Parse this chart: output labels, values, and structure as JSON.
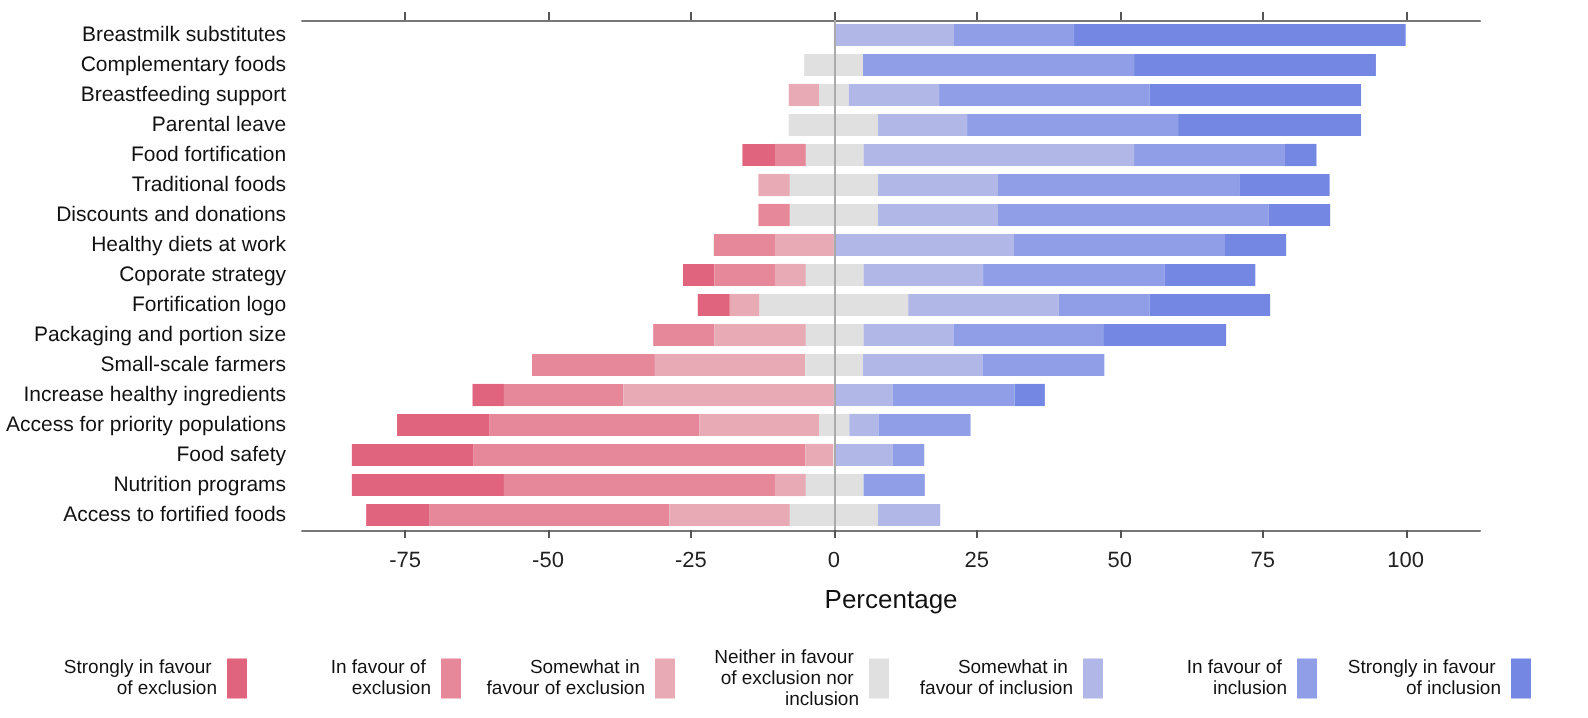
{
  "chart_data": {
    "type": "bar",
    "orientation": "horizontal",
    "xlabel": "Percentage",
    "categories": [
      "Breastmilk substitutes",
      "Complementary foods",
      "Breastfeeding support",
      "Parental leave",
      "Food fortification",
      "Traditional foods",
      "Discounts and donations",
      "Healthy diets at work",
      "Coporate strategy",
      "Fortification logo",
      "Packaging and portion size",
      "Small-scale farmers",
      "Increase healthy ingredients",
      "Access for priority populations",
      "Food safety",
      "Nutrition programs",
      "Access to fortified foods"
    ],
    "series": [
      {
        "name": "Strongly in favour of exclusion",
        "color": "#e0647e",
        "base": [
          null,
          null,
          null,
          null,
          -16,
          null,
          null,
          null,
          -26.4,
          -23.8,
          null,
          null,
          -63.2,
          -76.4,
          -84.3,
          -84.3,
          -81.8
        ],
        "values": [
          null,
          null,
          null,
          null,
          5.7,
          null,
          null,
          null,
          5.5,
          5.6,
          null,
          null,
          5.5,
          16.2,
          21.3,
          26.6,
          11
        ]
      },
      {
        "name": "In favour of exclusion",
        "color": "#e6889a",
        "base": [
          null,
          null,
          null,
          null,
          -10.3,
          null,
          -13.2,
          -21,
          -20.9,
          null,
          -31.6,
          -52.8,
          -57.7,
          -60.2,
          -63,
          -57.7,
          -70.8
        ],
        "values": [
          null,
          null,
          null,
          null,
          5.4,
          null,
          5.5,
          10.7,
          10.6,
          null,
          10.7,
          21.5,
          20.9,
          36.7,
          58,
          47.4,
          42
        ]
      },
      {
        "name": "Somewhat in favour of exclusion",
        "color": "#e8aab4",
        "base": [
          null,
          null,
          -7.9,
          null,
          null,
          -13.2,
          null,
          -10.3,
          -10.3,
          -18.2,
          -20.9,
          -31.3,
          -36.8,
          -23.5,
          -5,
          -10.3,
          -28.8
        ],
        "values": [
          null,
          null,
          5.3,
          null,
          null,
          5.5,
          null,
          10.3,
          5.4,
          5.2,
          16,
          26.3,
          36.8,
          20.9,
          4.9,
          5.4,
          21.1
        ]
      },
      {
        "name": "Neither in favour of exclusion nor inclusion",
        "color": "#e0e0e0",
        "base": [
          null,
          -5.2,
          -2.6,
          -7.9,
          -4.9,
          -7.7,
          -7.7,
          null,
          -4.9,
          -13,
          -4.9,
          -5,
          null,
          -2.6,
          null,
          -4.9,
          -7.7
        ],
        "values": [
          null,
          10.3,
          5.2,
          15.6,
          10.1,
          15.4,
          15.4,
          null,
          10.1,
          26,
          10.1,
          10.1,
          null,
          5.3,
          null,
          10.1,
          15.4
        ]
      },
      {
        "name": "Somewhat in favour of inclusion",
        "color": "#b1b7e6",
        "base": [
          0,
          null,
          2.6,
          7.7,
          5.2,
          7.7,
          7.7,
          0,
          5.2,
          13,
          5.2,
          5.1,
          0,
          2.7,
          0,
          null,
          7.7
        ],
        "values": [
          21,
          null,
          15.8,
          15.6,
          47.3,
          21,
          21,
          31.5,
          20.9,
          26.3,
          15.7,
          20.9,
          10.3,
          5.1,
          10.3,
          null,
          10.9
        ]
      },
      {
        "name": "In favour of inclusion",
        "color": "#8f9ee6",
        "base": [
          21,
          5.1,
          18.4,
          23.3,
          52.5,
          28.7,
          28.7,
          31.5,
          26.1,
          39.3,
          20.9,
          26,
          10.3,
          7.8,
          10.3,
          5.2,
          null
        ],
        "values": [
          21,
          47.4,
          36.8,
          36.9,
          26.4,
          42.2,
          47.3,
          36.9,
          31.7,
          15.9,
          26.2,
          21.3,
          21.3,
          16.1,
          5.5,
          10.7,
          null
        ]
      },
      {
        "name": "Strongly in favour of inclusion",
        "color": "#7487e3",
        "base": [
          42,
          52.5,
          55.2,
          60.2,
          78.9,
          70.9,
          76,
          68.4,
          57.8,
          55.2,
          47.1,
          null,
          31.6,
          null,
          null,
          null,
          null
        ],
        "values": [
          58,
          42.3,
          37,
          32,
          5.5,
          15.8,
          10.8,
          10.7,
          15.9,
          21.1,
          21.5,
          null,
          5.3,
          null,
          null,
          null,
          null
        ]
      }
    ],
    "xlim": [
      -93,
      113
    ],
    "xticks": [
      -75,
      -50,
      -25,
      0,
      25,
      50,
      75,
      100
    ],
    "ref_lines": [
      {
        "axis": "x",
        "value": 0,
        "color": "#aaaaaa"
      }
    ],
    "legend": "bottom"
  }
}
